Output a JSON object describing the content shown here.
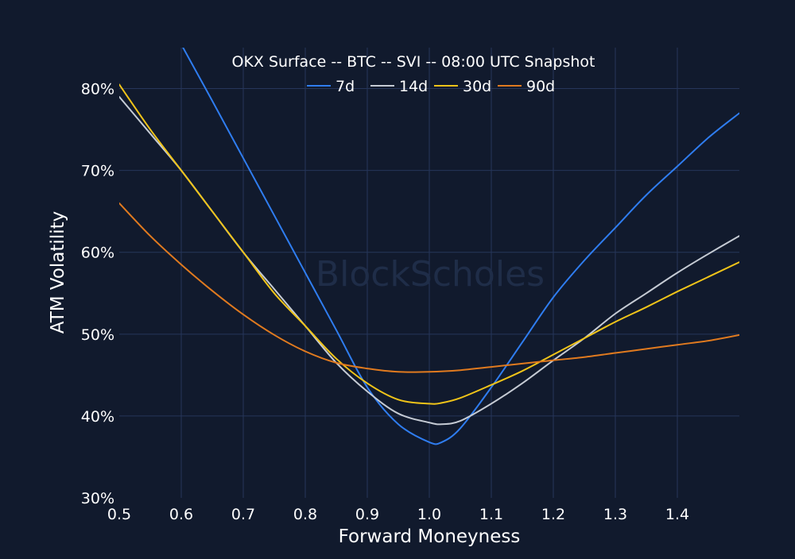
{
  "chart_data": {
    "type": "line",
    "title": "OKX Surface -- BTC -- SVI -- 08:00 UTC Snapshot",
    "watermark": "BlockScholes",
    "xlabel": "Forward Moneyness",
    "ylabel": "ATM Volatility",
    "xlim": [
      0.5,
      1.5
    ],
    "ylim": [
      30,
      85
    ],
    "x_ticks": [
      {
        "value": 0.5,
        "label": "0.5"
      },
      {
        "value": 0.6,
        "label": "0.6"
      },
      {
        "value": 0.7,
        "label": "0.7"
      },
      {
        "value": 0.8,
        "label": "0.8"
      },
      {
        "value": 0.9,
        "label": "0.9"
      },
      {
        "value": 1.0,
        "label": "1.0"
      },
      {
        "value": 1.1,
        "label": "1.1"
      },
      {
        "value": 1.2,
        "label": "1.2"
      },
      {
        "value": 1.3,
        "label": "1.3"
      },
      {
        "value": 1.4,
        "label": "1.4"
      }
    ],
    "y_ticks": [
      {
        "value": 30,
        "label": "30%"
      },
      {
        "value": 40,
        "label": "40%"
      },
      {
        "value": 50,
        "label": "50%"
      },
      {
        "value": 60,
        "label": "60%"
      },
      {
        "value": 70,
        "label": "70%"
      },
      {
        "value": 80,
        "label": "80%"
      }
    ],
    "grid": true,
    "legend_position": "top-center",
    "background_color": "#111a2d",
    "grid_color": "#26365a",
    "text_color": "#ffffff",
    "series": [
      {
        "name": "7d",
        "color": "#2f7df0",
        "x": [
          0.57,
          0.6,
          0.65,
          0.7,
          0.75,
          0.8,
          0.85,
          0.9,
          0.95,
          1.0,
          1.02,
          1.05,
          1.1,
          1.15,
          1.2,
          1.25,
          1.3,
          1.35,
          1.4,
          1.45,
          1.5
        ],
        "y": [
          89.5,
          85.4,
          78.5,
          71.5,
          64.5,
          57.5,
          50.5,
          43.5,
          39.0,
          36.8,
          36.8,
          38.5,
          43.5,
          49.0,
          54.5,
          59.0,
          63.0,
          67.0,
          70.5,
          74.0,
          77.0
        ]
      },
      {
        "name": "14d",
        "color": "#c5cbd4",
        "x": [
          0.5,
          0.55,
          0.6,
          0.65,
          0.7,
          0.75,
          0.8,
          0.85,
          0.9,
          0.95,
          1.0,
          1.02,
          1.05,
          1.1,
          1.15,
          1.2,
          1.25,
          1.3,
          1.35,
          1.4,
          1.45,
          1.5
        ],
        "y": [
          79.0,
          74.5,
          70.0,
          65.0,
          60.0,
          55.5,
          51.0,
          46.5,
          43.0,
          40.3,
          39.2,
          39.0,
          39.4,
          41.5,
          44.0,
          46.8,
          49.5,
          52.5,
          55.0,
          57.5,
          59.8,
          62.0
        ]
      },
      {
        "name": "30d",
        "color": "#f0c419",
        "x": [
          0.5,
          0.55,
          0.6,
          0.65,
          0.7,
          0.75,
          0.8,
          0.85,
          0.9,
          0.95,
          1.0,
          1.02,
          1.05,
          1.1,
          1.15,
          1.2,
          1.25,
          1.3,
          1.35,
          1.4,
          1.45,
          1.5
        ],
        "y": [
          80.5,
          75.0,
          70.0,
          65.0,
          60.0,
          55.0,
          51.0,
          47.0,
          44.0,
          42.0,
          41.5,
          41.6,
          42.2,
          43.8,
          45.5,
          47.5,
          49.5,
          51.5,
          53.3,
          55.2,
          57.0,
          58.8
        ]
      },
      {
        "name": "90d",
        "color": "#e07a1f",
        "x": [
          0.5,
          0.55,
          0.6,
          0.65,
          0.7,
          0.75,
          0.8,
          0.85,
          0.9,
          0.95,
          1.0,
          1.05,
          1.1,
          1.15,
          1.2,
          1.25,
          1.3,
          1.35,
          1.4,
          1.45,
          1.5
        ],
        "y": [
          66.0,
          62.0,
          58.5,
          55.3,
          52.4,
          49.9,
          47.9,
          46.5,
          45.8,
          45.4,
          45.4,
          45.6,
          46.0,
          46.4,
          46.8,
          47.2,
          47.7,
          48.2,
          48.7,
          49.2,
          49.9
        ]
      }
    ]
  }
}
